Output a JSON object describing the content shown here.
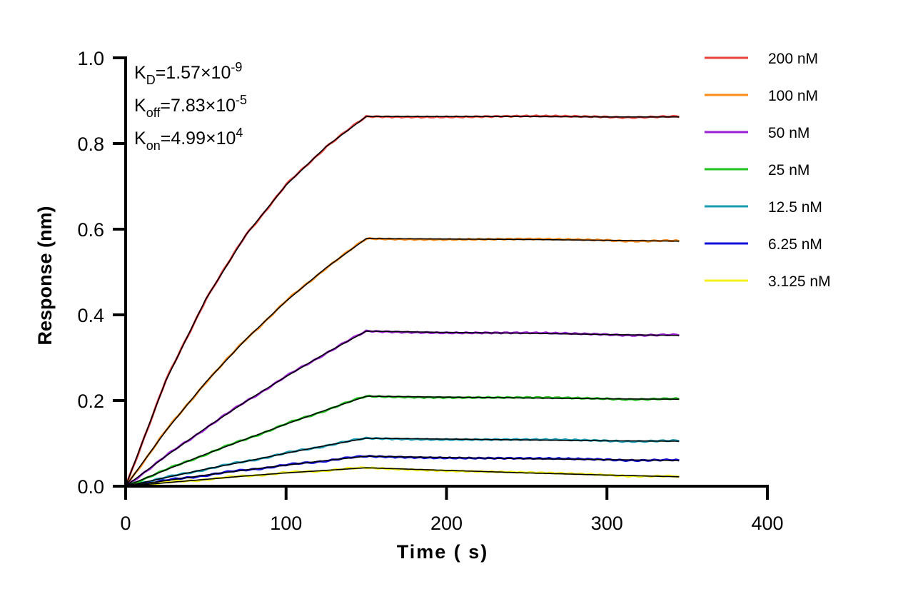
{
  "chart_data": {
    "type": "line",
    "title": "",
    "xlabel": "Time ( s)",
    "ylabel": "Response (nm)",
    "xlim": [
      0,
      400
    ],
    "ylim": [
      0,
      1.0
    ],
    "x_ticks": [
      "0",
      "100",
      "200",
      "300",
      "400"
    ],
    "y_ticks": [
      "0.0",
      "0.2",
      "0.4",
      "0.6",
      "0.8",
      "1.0"
    ],
    "grid": false,
    "legend_position": "top-right",
    "fit_line_color": "#000000",
    "annotations": [
      {
        "k": "K",
        "sub": "D",
        "value": "=1.57×10",
        "exp": "-9"
      },
      {
        "k": "K",
        "sub": "off",
        "value": "=7.83×10",
        "exp": "-5"
      },
      {
        "k": "K",
        "sub": "on",
        "value": "=4.99×10",
        "exp": "4"
      }
    ],
    "x": [
      0,
      25,
      50,
      75,
      100,
      125,
      150,
      200,
      250,
      300,
      345
    ],
    "series": [
      {
        "name": "200 nM",
        "color": "#e8413c",
        "values": [
          0,
          0.246,
          0.437,
          0.587,
          0.703,
          0.793,
          0.863,
          0.863,
          0.863,
          0.862,
          0.862
        ]
      },
      {
        "name": "100 nM",
        "color": "#ff8c1a",
        "values": [
          0,
          0.129,
          0.243,
          0.343,
          0.432,
          0.51,
          0.578,
          0.577,
          0.576,
          0.574,
          0.572
        ]
      },
      {
        "name": "50 nM",
        "color": "#9b1fd6",
        "values": [
          0,
          0.07,
          0.136,
          0.198,
          0.256,
          0.311,
          0.362,
          0.359,
          0.357,
          0.354,
          0.352
        ]
      },
      {
        "name": "25 nM",
        "color": "#22c21e",
        "values": [
          0,
          0.038,
          0.075,
          0.11,
          0.145,
          0.178,
          0.21,
          0.208,
          0.206,
          0.204,
          0.203
        ]
      },
      {
        "name": "12.5 nM",
        "color": "#1a9bb5",
        "values": [
          0,
          0.02,
          0.04,
          0.058,
          0.077,
          0.095,
          0.112,
          0.11,
          0.108,
          0.106,
          0.105
        ]
      },
      {
        "name": "6.25 nM",
        "color": "#1010d8",
        "values": [
          0,
          0.013,
          0.026,
          0.038,
          0.049,
          0.06,
          0.07,
          0.067,
          0.064,
          0.062,
          0.06
        ]
      },
      {
        "name": "3.125 nM",
        "color": "#f5f01a",
        "values": [
          0,
          0.008,
          0.016,
          0.024,
          0.031,
          0.037,
          0.043,
          0.037,
          0.031,
          0.026,
          0.022
        ]
      }
    ]
  }
}
